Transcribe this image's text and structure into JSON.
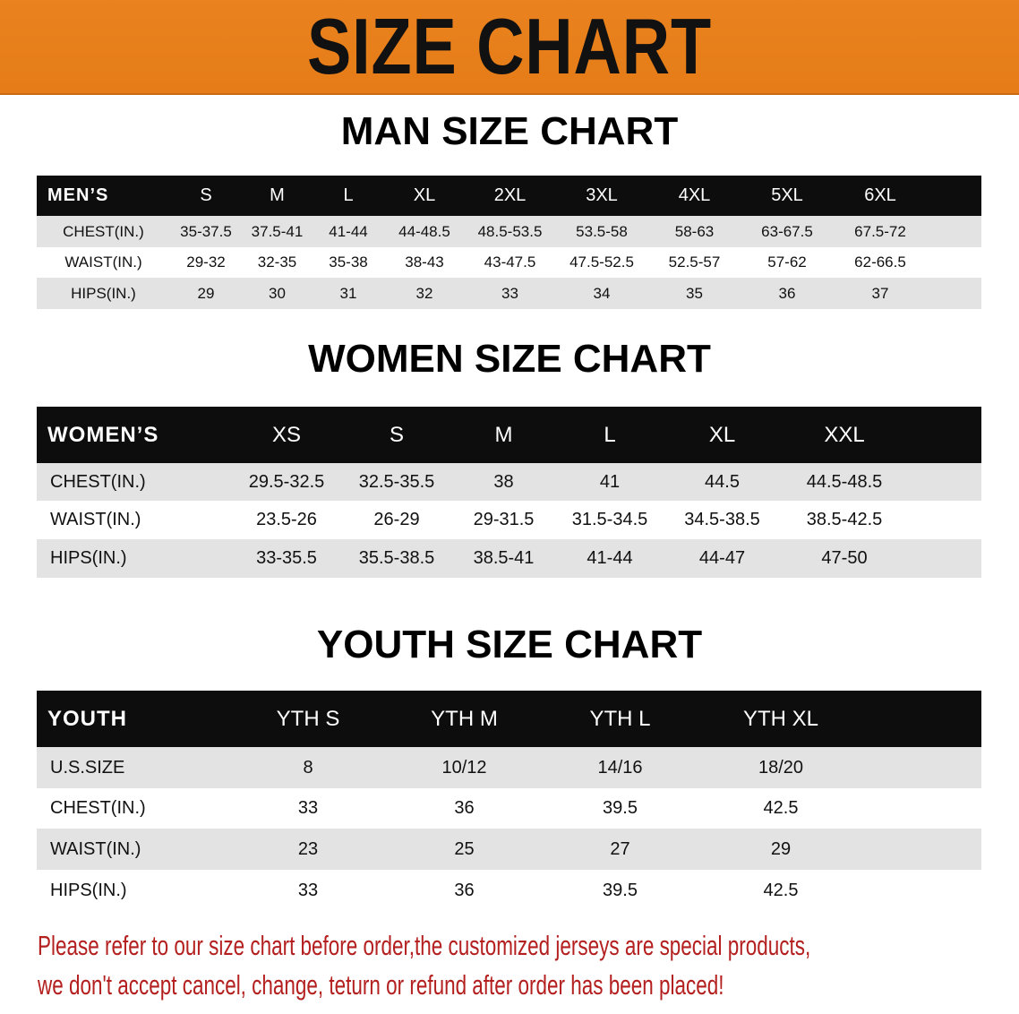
{
  "banner": {
    "title": "SIZE CHART",
    "color": "#e8801e"
  },
  "men": {
    "title": "MAN SIZE CHART",
    "header": "MEN’S",
    "sizes": [
      "S",
      "M",
      "L",
      "XL",
      "2XL",
      "3XL",
      "4XL",
      "5XL",
      "6XL"
    ],
    "rows": [
      {
        "label": "CHEST(IN.)",
        "values": [
          "35-37.5",
          "37.5-41",
          "41-44",
          "44-48.5",
          "48.5-53.5",
          "53.5-58",
          "58-63",
          "63-67.5",
          "67.5-72"
        ]
      },
      {
        "label": "WAIST(IN.)",
        "values": [
          "29-32",
          "32-35",
          "35-38",
          "38-43",
          "43-47.5",
          "47.5-52.5",
          "52.5-57",
          "57-62",
          "62-66.5"
        ]
      },
      {
        "label": "HIPS(IN.)",
        "values": [
          "29",
          "30",
          "31",
          "32",
          "33",
          "34",
          "35",
          "36",
          "37"
        ]
      }
    ]
  },
  "women": {
    "title": "WOMEN SIZE CHART",
    "header": "WOMEN’S",
    "sizes": [
      "XS",
      "S",
      "M",
      "L",
      "XL",
      "XXL"
    ],
    "rows": [
      {
        "label": "CHEST(IN.)",
        "values": [
          "29.5-32.5",
          "32.5-35.5",
          "38",
          "41",
          "44.5",
          "44.5-48.5"
        ]
      },
      {
        "label": "WAIST(IN.)",
        "values": [
          "23.5-26",
          "26-29",
          "29-31.5",
          "31.5-34.5",
          "34.5-38.5",
          "38.5-42.5"
        ]
      },
      {
        "label": "HIPS(IN.)",
        "values": [
          "33-35.5",
          "35.5-38.5",
          "38.5-41",
          "41-44",
          "44-47",
          "47-50"
        ]
      }
    ]
  },
  "youth": {
    "title": "YOUTH SIZE CHART",
    "header": "YOUTH",
    "sizes": [
      "YTH S",
      "YTH M",
      "YTH L",
      "YTH XL"
    ],
    "rows": [
      {
        "label": "U.S.SIZE",
        "values": [
          "8",
          "10/12",
          "14/16",
          "18/20"
        ]
      },
      {
        "label": "CHEST(IN.)",
        "values": [
          "33",
          "36",
          "39.5",
          "42.5"
        ]
      },
      {
        "label": "WAIST(IN.)",
        "values": [
          "23",
          "25",
          "27",
          "29"
        ]
      },
      {
        "label": "HIPS(IN.)",
        "values": [
          "33",
          "36",
          "39.5",
          "42.5"
        ]
      }
    ]
  },
  "note": {
    "line1": "Please refer to our size chart before order,the customized jerseys are special products,",
    "line2": "we don't accept cancel, change, teturn or refund after order has been placed!",
    "color": "#b3201f"
  }
}
